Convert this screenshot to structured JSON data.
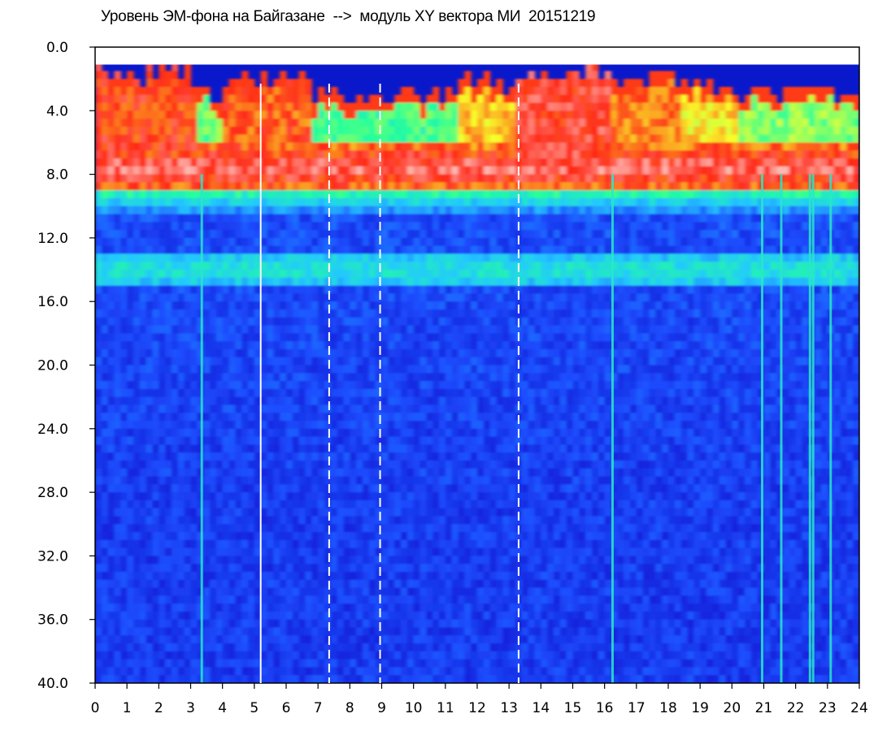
{
  "chart_data": {
    "type": "heatmap",
    "title": "Уровень ЭМ-фона на Байгазане  -->  модуль XY вектора МИ  20151219",
    "xlabel": "",
    "ylabel": "",
    "xlim": [
      0,
      24
    ],
    "ylim": [
      0,
      40
    ],
    "y_axis_inverted": true,
    "x_ticks": [
      "0",
      "1",
      "2",
      "3",
      "4",
      "5",
      "6",
      "7",
      "8",
      "9",
      "10",
      "11",
      "12",
      "13",
      "14",
      "15",
      "16",
      "17",
      "18",
      "19",
      "20",
      "21",
      "22",
      "23",
      "24"
    ],
    "y_ticks": [
      "0.0",
      "4.0",
      "8.0",
      "12.0",
      "16.0",
      "20.0",
      "24.0",
      "28.0",
      "32.0",
      "36.0",
      "40.0"
    ],
    "colormap": [
      "#0a0ac8",
      "#1f4fff",
      "#21c8ff",
      "#25ff9a",
      "#f8ff2a",
      "#ff2a18",
      "#ffffff"
    ],
    "grid": false,
    "vertical_markers": [
      {
        "x": 5.2,
        "style": "solid"
      },
      {
        "x": 7.35,
        "style": "dashed"
      },
      {
        "x": 8.95,
        "style": "dashed"
      },
      {
        "x": 13.3,
        "style": "dashed"
      }
    ],
    "bright_vertical_lines": [
      3.35,
      16.25,
      20.95,
      21.55,
      22.45,
      22.55,
      23.1
    ]
  }
}
